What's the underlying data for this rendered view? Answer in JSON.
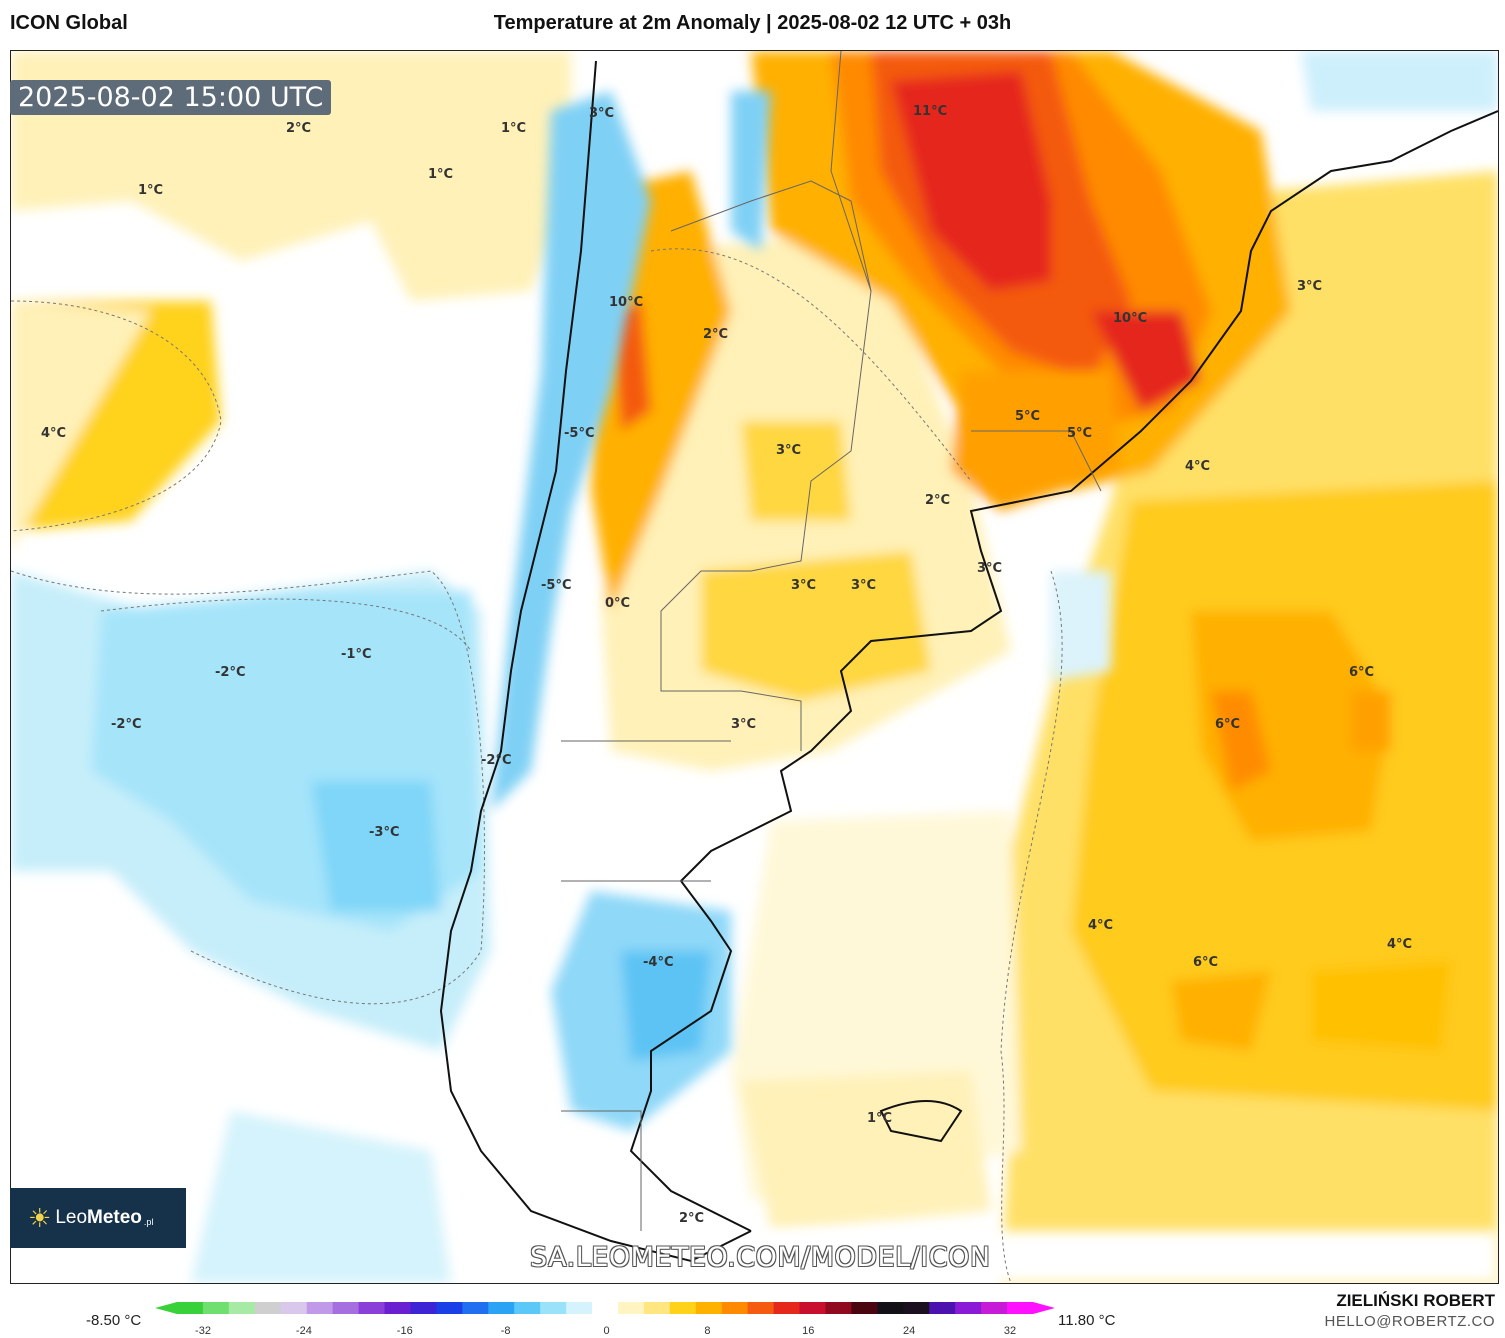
{
  "header": {
    "model": "ICON Global",
    "title": "Temperature at 2m Anomaly | 2025-08-02 12 UTC + 03h"
  },
  "map": {
    "valid_time": "2025-08-02 15:00 UTC",
    "watermark": "SA.LEOMETEO.COM/MODEL/ICON",
    "labels": [
      "3°C",
      "2°C",
      "1°C",
      "1°C",
      "1°C",
      "11°C",
      "10°C",
      "10°C",
      "2°C",
      "3°C",
      "4°C",
      "4°C",
      "5°C",
      "5°C",
      "-5°C",
      "3°C",
      "2°C",
      "3°C",
      "3°C",
      "3°C",
      "-5°C",
      "0°C",
      "-1°C",
      "-2°C",
      "-2°C",
      "6°C",
      "6°C",
      "3°C",
      "-2°C",
      "-3°C",
      "-4°C",
      "4°C",
      "6°C",
      "4°C",
      "1°C",
      "2°C"
    ]
  },
  "logo": {
    "brand_light": "Leo",
    "brand_bold": "Meteo",
    "suffix": ".pl",
    "icon": "sun-icon"
  },
  "colorbar": {
    "min_label": "-8.50 °C",
    "max_label": "11.80 °C",
    "ticks": [
      "-32",
      "-24",
      "-16",
      "-8",
      "0",
      "8",
      "16",
      "24",
      "32"
    ],
    "colors": [
      "#39d139",
      "#6fe06f",
      "#a6eaa6",
      "#cfcfcf",
      "#d9c8ec",
      "#c09ae8",
      "#a66fe0",
      "#8a40d8",
      "#6a1fd0",
      "#3d24d4",
      "#1a3fe6",
      "#1f6ff0",
      "#2ba3f5",
      "#5cc8f8",
      "#9ae2fa",
      "#d4f3fc",
      "#ffffff",
      "#fff4c2",
      "#ffe680",
      "#ffd21a",
      "#ffb100",
      "#ff8a00",
      "#f45a10",
      "#e5271c",
      "#c8102e",
      "#8f0a1e",
      "#4a0610",
      "#141018",
      "#1a1020",
      "#4b12b0",
      "#8b1ad8",
      "#c61cd8",
      "#ff10ff"
    ]
  },
  "credits": {
    "author": "ZIELIŃSKI ROBERT",
    "email": "HELLO@ROBERTZ.CO"
  }
}
